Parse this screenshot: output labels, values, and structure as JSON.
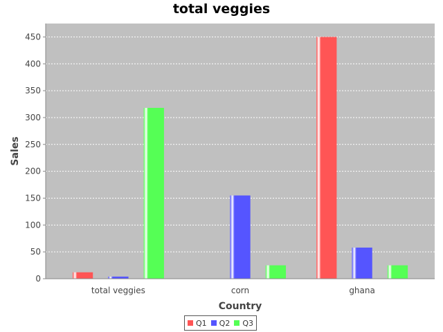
{
  "chart_data": {
    "type": "bar",
    "title": "total veggies",
    "xlabel": "Country",
    "ylabel": "Sales",
    "categories": [
      "total veggies",
      "corn",
      "ghana"
    ],
    "series": [
      {
        "name": "Q1",
        "color": "#ff5555",
        "values": [
          12,
          0,
          450
        ]
      },
      {
        "name": "Q2",
        "color": "#5555ff",
        "values": [
          4,
          155,
          58
        ]
      },
      {
        "name": "Q3",
        "color": "#55ff55",
        "values": [
          318,
          25,
          25
        ]
      }
    ],
    "ylim": [
      0,
      475
    ],
    "yticks": [
      0,
      50,
      100,
      150,
      200,
      250,
      300,
      350,
      400,
      450
    ],
    "grid": true,
    "legend_position": "bottom",
    "plot_background": "#c0c0c0"
  }
}
